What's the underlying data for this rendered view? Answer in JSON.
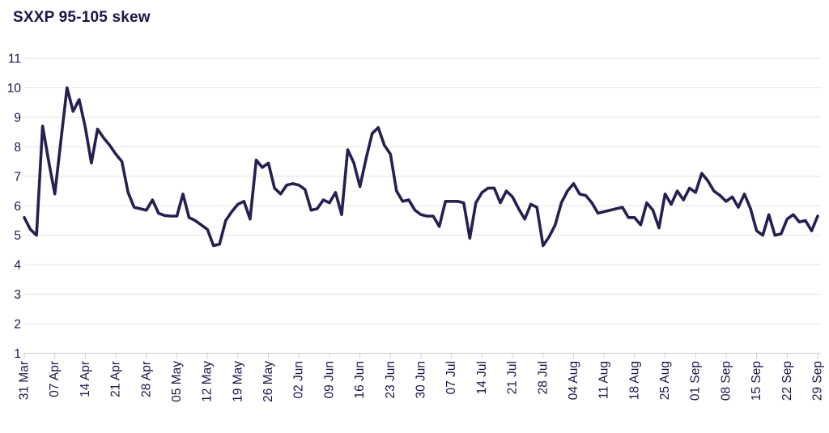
{
  "header": {
    "title": "SXXP 95-105 skew"
  },
  "chart_data": {
    "type": "line",
    "title": "SXXP 95-105 skew",
    "xlabel": "",
    "ylabel": "",
    "ylim": [
      1,
      11
    ],
    "y_ticks": [
      1,
      2,
      3,
      4,
      5,
      6,
      7,
      8,
      9,
      10,
      11
    ],
    "grid": true,
    "legend_position": "none",
    "x_tick_labels": [
      "31 Mar",
      "07 Apr",
      "14 Apr",
      "21 Apr",
      "28 Apr",
      "05 May",
      "12 May",
      "19 May",
      "26 May",
      "02 Jun",
      "09 Jun",
      "16 Jun",
      "23 Jun",
      "30 Jun",
      "07 Jul",
      "14 Jul",
      "21 Jul",
      "28 Jul",
      "04 Aug",
      "11 Aug",
      "18 Aug",
      "25 Aug",
      "01 Sep",
      "08 Sep",
      "15 Sep",
      "22 Sep",
      "29 Sep"
    ],
    "points_per_tick": 5,
    "series": [
      {
        "name": "SXXP 95-105 skew",
        "frequency": "daily (weekdays)",
        "values": [
          5.6,
          5.2,
          5.0,
          8.7,
          7.5,
          6.4,
          8.2,
          10.0,
          9.2,
          9.6,
          8.65,
          7.45,
          8.6,
          8.3,
          8.05,
          7.75,
          7.5,
          6.45,
          5.95,
          5.9,
          5.85,
          6.2,
          5.75,
          5.67,
          5.65,
          5.65,
          6.4,
          5.6,
          5.5,
          5.35,
          5.2,
          4.65,
          4.7,
          5.5,
          5.8,
          6.05,
          6.15,
          5.55,
          7.55,
          7.3,
          7.45,
          6.6,
          6.4,
          6.7,
          6.75,
          6.7,
          6.55,
          5.85,
          5.9,
          6.2,
          6.1,
          6.45,
          5.7,
          7.9,
          7.45,
          6.65,
          7.6,
          8.45,
          8.65,
          8.05,
          7.75,
          6.5,
          6.15,
          6.2,
          5.85,
          5.7,
          5.65,
          5.65,
          5.3,
          6.15,
          6.15,
          6.15,
          6.1,
          4.9,
          6.1,
          6.45,
          6.6,
          6.6,
          6.1,
          6.5,
          6.3,
          5.9,
          5.55,
          6.05,
          5.95,
          4.65,
          4.95,
          5.35,
          6.1,
          6.5,
          6.75,
          6.4,
          6.35,
          6.1,
          5.75,
          5.8,
          5.85,
          5.9,
          5.95,
          5.6,
          5.6,
          5.35,
          6.1,
          5.85,
          5.25,
          6.4,
          6.05,
          6.5,
          6.2,
          6.6,
          6.45,
          7.1,
          6.85,
          6.5,
          6.35,
          6.15,
          6.3,
          5.95,
          6.4,
          5.9,
          5.15,
          5.0,
          5.7,
          5.0,
          5.05,
          5.55,
          5.7,
          5.45,
          5.5,
          5.15,
          5.65
        ]
      }
    ],
    "colors": {
      "line": "#262052",
      "grid": "#e3e3e7",
      "axis": "#d5d5d9",
      "tick": "#cfcfd3",
      "text": "#1b1548",
      "background": "#ffffff"
    }
  }
}
